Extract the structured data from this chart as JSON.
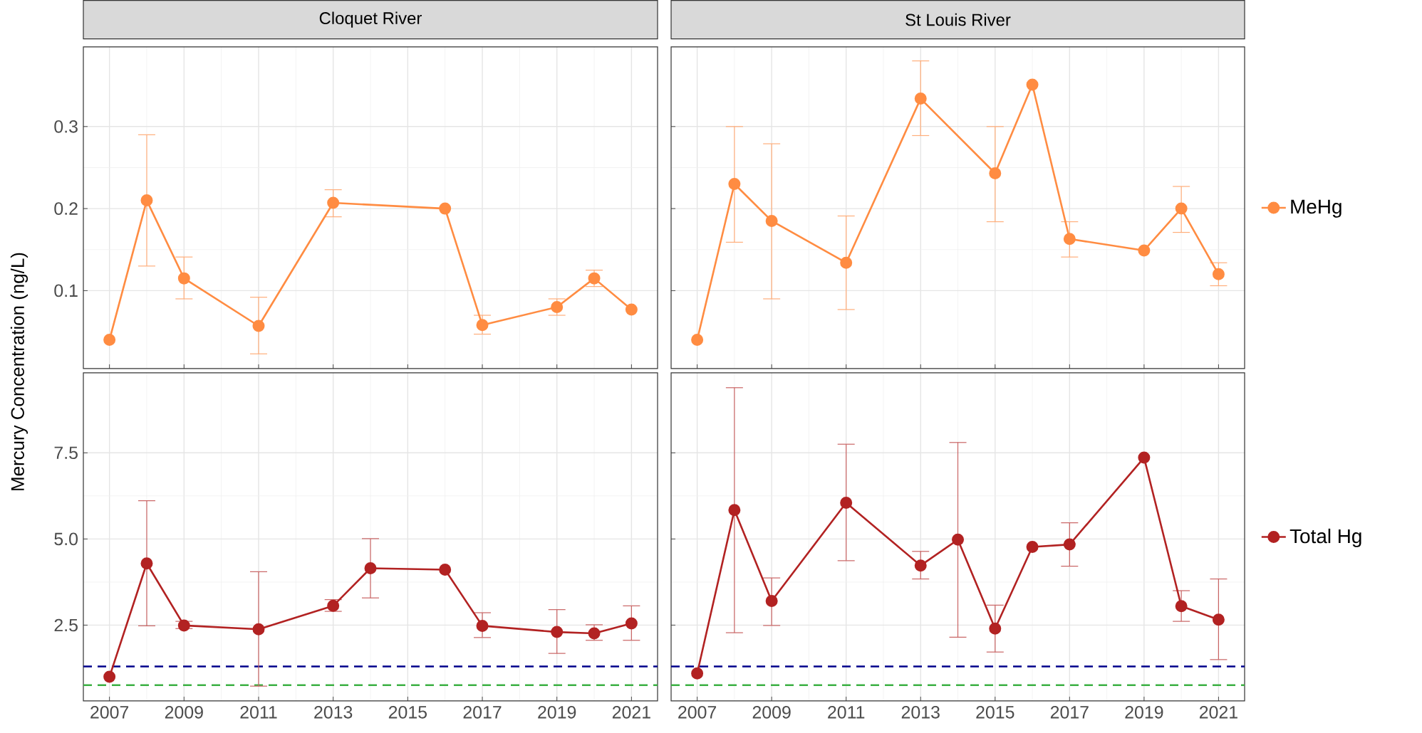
{
  "chart_data": [
    {
      "type": "line",
      "title": "Cloquet River",
      "ylabel": "Mercury Concentration (ng/L)",
      "x": [
        2007,
        2008,
        2009,
        2011,
        2013,
        2016,
        2017,
        2019,
        2020,
        2021
      ],
      "xlim": [
        2006.3,
        2021.7
      ],
      "xticks": [
        2007,
        2009,
        2011,
        2013,
        2015,
        2017,
        2019,
        2021
      ],
      "ylim": [
        0.005,
        0.397
      ],
      "yticks": [
        0.1,
        0.2,
        0.3
      ],
      "tick_labels": "y",
      "grid": true,
      "marker": "circle",
      "line_style": "solid",
      "series": [
        {
          "color": "#ff8c42",
          "values": [
            0.04,
            0.21,
            0.115,
            0.057,
            0.207,
            0.2,
            0.058,
            0.08,
            0.115,
            0.077
          ],
          "errors": [
            null,
            [
              0.13,
              0.29
            ],
            [
              0.09,
              0.141
            ],
            [
              0.023,
              0.092
            ],
            [
              0.19,
              0.223
            ],
            null,
            [
              0.047,
              0.07
            ],
            [
              0.07,
              0.09
            ],
            [
              0.105,
              0.125
            ],
            null
          ]
        }
      ]
    },
    {
      "type": "line",
      "title": "St Louis River",
      "x": [
        2007,
        2008,
        2009,
        2011,
        2013,
        2015,
        2016,
        2017,
        2019,
        2020,
        2021
      ],
      "xlim": [
        2006.3,
        2021.7
      ],
      "xticks": [
        2007,
        2009,
        2011,
        2013,
        2015,
        2017,
        2019,
        2021
      ],
      "ylim": [
        0.005,
        0.397
      ],
      "yticks": [
        0.1,
        0.2,
        0.3
      ],
      "tick_labels": false,
      "grid": true,
      "marker": "circle",
      "line_style": "solid",
      "legend": "right",
      "series": [
        {
          "name": "MeHg",
          "color": "#ff8c42",
          "values": [
            0.04,
            0.23,
            0.185,
            0.134,
            0.334,
            0.243,
            0.351,
            0.163,
            0.149,
            0.2,
            0.12
          ],
          "errors": [
            null,
            [
              0.159,
              0.3
            ],
            [
              0.09,
              0.279
            ],
            [
              0.077,
              0.191
            ],
            [
              0.289,
              0.38
            ],
            [
              0.184,
              0.3
            ],
            null,
            [
              0.141,
              0.184
            ],
            null,
            [
              0.171,
              0.227
            ],
            [
              0.106,
              0.134
            ]
          ]
        }
      ]
    },
    {
      "type": "line",
      "x": [
        2007,
        2008,
        2009,
        2011,
        2013,
        2014,
        2016,
        2017,
        2019,
        2020,
        2021
      ],
      "xlim": [
        2006.3,
        2021.7
      ],
      "xticks": [
        2007,
        2009,
        2011,
        2013,
        2015,
        2017,
        2019,
        2021
      ],
      "ylim": [
        0.3,
        9.82
      ],
      "yticks": [
        {
          "value": 2.5,
          "label": "2.5"
        },
        {
          "value": 5,
          "label": "5.0"
        },
        {
          "value": 7.5,
          "label": "7.5"
        }
      ],
      "grid": true,
      "marker": "circle",
      "line_style": "solid",
      "series": [
        {
          "color": "#b22222",
          "values": [
            1.0,
            4.29,
            2.49,
            2.38,
            3.06,
            4.15,
            4.11,
            2.48,
            2.3,
            2.26,
            2.55
          ],
          "errors": [
            null,
            [
              2.48,
              6.11
            ],
            [
              2.4,
              2.61
            ],
            [
              0.73,
              4.05
            ],
            [
              2.9,
              3.24
            ],
            [
              3.29,
              5.01
            ],
            null,
            [
              2.14,
              2.86
            ],
            [
              1.68,
              2.95
            ],
            [
              2.06,
              2.51
            ],
            [
              2.06,
              3.06
            ]
          ]
        }
      ],
      "ref_lines": [
        {
          "axis": "y",
          "value": 1.3,
          "color": "#00008b",
          "line_style": "dashed"
        },
        {
          "axis": "y",
          "value": 0.76,
          "color": "#3cb043",
          "line_style": "dashed"
        }
      ]
    },
    {
      "type": "line",
      "x": [
        2007,
        2008,
        2009,
        2011,
        2013,
        2014,
        2015,
        2016,
        2017,
        2019,
        2020,
        2021
      ],
      "xlim": [
        2006.3,
        2021.7
      ],
      "xticks": [
        2007,
        2009,
        2011,
        2013,
        2015,
        2017,
        2019,
        2021
      ],
      "ylim": [
        0.3,
        9.82
      ],
      "yticks": [
        2.5,
        5,
        7.5
      ],
      "tick_labels": "x",
      "grid": true,
      "marker": "circle",
      "line_style": "solid",
      "legend": "right",
      "series": [
        {
          "name": "Total Hg",
          "color": "#b22222",
          "values": [
            1.1,
            5.84,
            3.2,
            6.05,
            4.23,
            4.98,
            2.4,
            4.77,
            4.84,
            7.36,
            3.05,
            2.66
          ],
          "errors": [
            null,
            [
              2.28,
              9.39
            ],
            [
              2.49,
              3.87
            ],
            [
              4.37,
              7.75
            ],
            [
              3.84,
              4.64
            ],
            [
              2.15,
              7.8
            ],
            [
              1.72,
              3.08
            ],
            null,
            [
              4.21,
              5.47
            ],
            null,
            [
              2.61,
              3.5
            ],
            [
              1.5,
              3.84
            ]
          ]
        }
      ],
      "ref_lines": [
        {
          "axis": "y",
          "value": 1.3,
          "color": "#00008b",
          "line_style": "dashed"
        },
        {
          "axis": "y",
          "value": 0.76,
          "color": "#3cb043",
          "line_style": "dashed"
        }
      ]
    }
  ]
}
